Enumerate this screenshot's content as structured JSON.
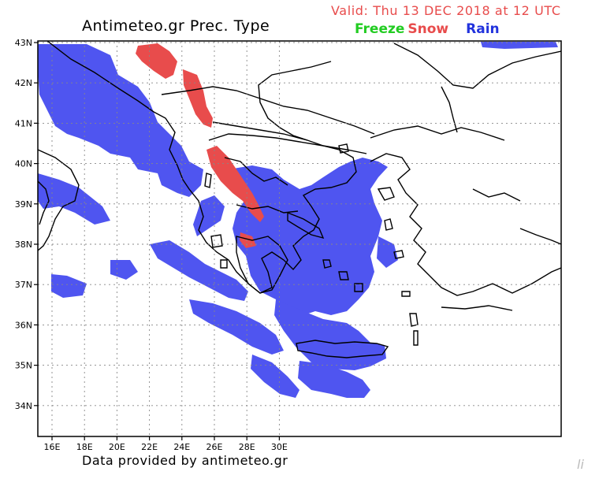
{
  "header": {
    "title": "Antimeteo.gr Prec. Type",
    "valid": "Valid: Thu 13 DEC 2018 at 12 UTC"
  },
  "legend": {
    "freeze": "Freeze",
    "snow": "Snow",
    "rain": "Rain",
    "colors": {
      "freeze": "#22cc22",
      "snow": "#e84c4c",
      "rain": "#4f55f0",
      "title_red": "#e84c4c"
    }
  },
  "map": {
    "lat_labels": [
      "43N",
      "42N",
      "41N",
      "40N",
      "39N",
      "38N",
      "37N",
      "36N",
      "35N",
      "34N"
    ],
    "lon_labels": [
      "16E",
      "18E",
      "20E",
      "22E",
      "24E",
      "26E",
      "28E",
      "30E"
    ]
  },
  "footer": {
    "credit": "Data provided by antimeteo.gr"
  },
  "watermark": "li"
}
